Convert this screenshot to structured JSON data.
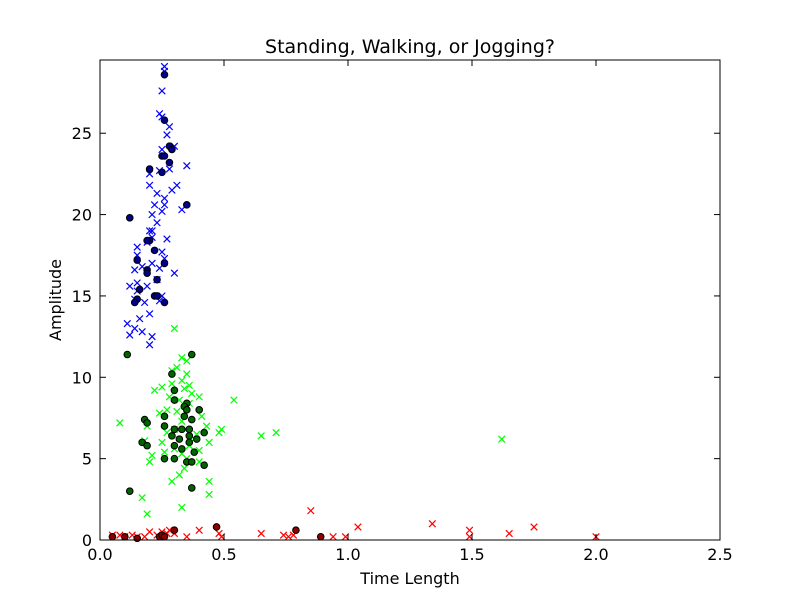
{
  "chart_data": {
    "type": "scatter",
    "title": "Standing, Walking, or Jogging?",
    "xlabel": "Time Length",
    "ylabel": "Amplitude",
    "xlim": [
      0,
      2.5
    ],
    "ylim": [
      0,
      29.5
    ],
    "xticks": [
      0.0,
      0.5,
      1.0,
      1.5,
      2.0,
      2.5
    ],
    "xtick_labels": [
      "0.0",
      "0.5",
      "1.0",
      "1.5",
      "2.0",
      "2.5"
    ],
    "yticks": [
      0,
      5,
      10,
      15,
      20,
      25
    ],
    "ytick_labels": [
      "0",
      "5",
      "10",
      "15",
      "20",
      "25"
    ],
    "grid": false,
    "legend": "none",
    "series": [
      {
        "marker": "x",
        "color": "#0000ff",
        "points": [
          [
            0.26,
            29.1
          ],
          [
            0.26,
            28.8
          ],
          [
            0.25,
            27.6
          ],
          [
            0.25,
            26.0
          ],
          [
            0.24,
            26.2
          ],
          [
            0.28,
            25.4
          ],
          [
            0.27,
            24.9
          ],
          [
            0.3,
            24.2
          ],
          [
            0.25,
            24.0
          ],
          [
            0.35,
            23.0
          ],
          [
            0.24,
            22.7
          ],
          [
            0.28,
            22.8
          ],
          [
            0.2,
            22.5
          ],
          [
            0.31,
            21.8
          ],
          [
            0.29,
            21.5
          ],
          [
            0.2,
            21.8
          ],
          [
            0.23,
            21.3
          ],
          [
            0.22,
            20.6
          ],
          [
            0.26,
            21.0
          ],
          [
            0.26,
            20.6
          ],
          [
            0.33,
            20.3
          ],
          [
            0.25,
            20.2
          ],
          [
            0.21,
            20.0
          ],
          [
            0.23,
            19.5
          ],
          [
            0.2,
            19.0
          ],
          [
            0.21,
            19.0
          ],
          [
            0.15,
            18.0
          ],
          [
            0.15,
            17.5
          ],
          [
            0.19,
            18.3
          ],
          [
            0.21,
            18.6
          ],
          [
            0.27,
            18.5
          ],
          [
            0.25,
            17.7
          ],
          [
            0.26,
            17.3
          ],
          [
            0.14,
            16.6
          ],
          [
            0.17,
            16.8
          ],
          [
            0.21,
            17.0
          ],
          [
            0.24,
            16.7
          ],
          [
            0.3,
            16.4
          ],
          [
            0.23,
            16.0
          ],
          [
            0.15,
            15.8
          ],
          [
            0.12,
            15.6
          ],
          [
            0.15,
            15.3
          ],
          [
            0.14,
            14.8
          ],
          [
            0.18,
            14.6
          ],
          [
            0.24,
            14.7
          ],
          [
            0.2,
            13.9
          ],
          [
            0.16,
            13.6
          ],
          [
            0.11,
            13.3
          ],
          [
            0.14,
            13.0
          ],
          [
            0.17,
            12.8
          ],
          [
            0.21,
            12.5
          ],
          [
            0.12,
            12.6
          ],
          [
            0.2,
            12.0
          ],
          [
            0.25,
            15.0
          ],
          [
            0.19,
            15.6
          ]
        ]
      },
      {
        "marker": "o",
        "color": "#00008b",
        "points": [
          [
            0.26,
            28.6
          ],
          [
            0.26,
            25.8
          ],
          [
            0.28,
            24.2
          ],
          [
            0.29,
            24.0
          ],
          [
            0.25,
            23.6
          ],
          [
            0.26,
            23.6
          ],
          [
            0.28,
            23.2
          ],
          [
            0.2,
            22.8
          ],
          [
            0.25,
            22.6
          ],
          [
            0.35,
            20.6
          ],
          [
            0.12,
            19.8
          ],
          [
            0.2,
            18.4
          ],
          [
            0.19,
            18.4
          ],
          [
            0.22,
            17.8
          ],
          [
            0.15,
            17.2
          ],
          [
            0.26,
            17.0
          ],
          [
            0.19,
            16.6
          ],
          [
            0.19,
            16.4
          ],
          [
            0.23,
            16.0
          ],
          [
            0.16,
            15.4
          ],
          [
            0.22,
            15.0
          ],
          [
            0.23,
            15.0
          ],
          [
            0.15,
            14.8
          ],
          [
            0.14,
            14.6
          ],
          [
            0.26,
            14.6
          ]
        ]
      },
      {
        "marker": "x",
        "color": "#00ff00",
        "points": [
          [
            0.3,
            13.0
          ],
          [
            0.33,
            11.2
          ],
          [
            0.35,
            11.0
          ],
          [
            0.31,
            10.6
          ],
          [
            0.29,
            10.4
          ],
          [
            0.35,
            10.2
          ],
          [
            0.33,
            9.8
          ],
          [
            0.29,
            9.6
          ],
          [
            0.25,
            9.4
          ],
          [
            0.22,
            9.2
          ],
          [
            0.34,
            9.3
          ],
          [
            0.37,
            9.0
          ],
          [
            0.28,
            8.8
          ],
          [
            0.32,
            8.6
          ],
          [
            0.4,
            8.8
          ],
          [
            0.54,
            8.6
          ],
          [
            0.36,
            8.4
          ],
          [
            0.27,
            8.0
          ],
          [
            0.24,
            7.8
          ],
          [
            0.41,
            7.6
          ],
          [
            0.33,
            7.3
          ],
          [
            0.08,
            7.2
          ],
          [
            0.19,
            7.0
          ],
          [
            0.43,
            7.0
          ],
          [
            0.3,
            6.8
          ],
          [
            0.49,
            6.8
          ],
          [
            0.27,
            6.6
          ],
          [
            0.48,
            6.6
          ],
          [
            0.39,
            6.5
          ],
          [
            0.65,
            6.4
          ],
          [
            0.71,
            6.6
          ],
          [
            1.62,
            6.2
          ],
          [
            0.18,
            6.1
          ],
          [
            0.25,
            6.0
          ],
          [
            0.44,
            6.0
          ],
          [
            0.36,
            5.8
          ],
          [
            0.3,
            5.6
          ],
          [
            0.4,
            5.5
          ],
          [
            0.33,
            5.3
          ],
          [
            0.35,
            5.0
          ],
          [
            0.2,
            4.8
          ],
          [
            0.4,
            4.8
          ],
          [
            0.34,
            4.4
          ],
          [
            0.32,
            4.0
          ],
          [
            0.29,
            3.6
          ],
          [
            0.44,
            3.6
          ],
          [
            0.17,
            2.6
          ],
          [
            0.33,
            2.0
          ],
          [
            0.19,
            1.6
          ],
          [
            0.44,
            2.8
          ],
          [
            0.21,
            5.2
          ],
          [
            0.26,
            5.4
          ],
          [
            0.38,
            6.2
          ],
          [
            0.31,
            7.9
          ],
          [
            0.36,
            9.5
          ]
        ]
      },
      {
        "marker": "o",
        "color": "#006400",
        "points": [
          [
            0.11,
            11.4
          ],
          [
            0.37,
            11.4
          ],
          [
            0.29,
            10.2
          ],
          [
            0.3,
            9.2
          ],
          [
            0.3,
            8.6
          ],
          [
            0.35,
            8.4
          ],
          [
            0.34,
            8.2
          ],
          [
            0.35,
            8.0
          ],
          [
            0.4,
            8.0
          ],
          [
            0.26,
            7.6
          ],
          [
            0.34,
            7.6
          ],
          [
            0.37,
            7.4
          ],
          [
            0.18,
            7.4
          ],
          [
            0.19,
            7.2
          ],
          [
            0.26,
            7.0
          ],
          [
            0.3,
            6.8
          ],
          [
            0.33,
            6.8
          ],
          [
            0.36,
            6.8
          ],
          [
            0.42,
            6.6
          ],
          [
            0.29,
            6.4
          ],
          [
            0.32,
            6.2
          ],
          [
            0.36,
            6.4
          ],
          [
            0.39,
            6.2
          ],
          [
            0.17,
            6.0
          ],
          [
            0.19,
            5.8
          ],
          [
            0.36,
            6.0
          ],
          [
            0.3,
            5.8
          ],
          [
            0.33,
            5.6
          ],
          [
            0.38,
            5.4
          ],
          [
            0.26,
            5.0
          ],
          [
            0.3,
            5.0
          ],
          [
            0.35,
            4.8
          ],
          [
            0.37,
            4.8
          ],
          [
            0.42,
            4.6
          ],
          [
            0.37,
            3.2
          ],
          [
            0.12,
            3.0
          ]
        ]
      },
      {
        "marker": "x",
        "color": "#ff0000",
        "points": [
          [
            0.05,
            0.3
          ],
          [
            0.08,
            0.3
          ],
          [
            0.1,
            0.2
          ],
          [
            0.13,
            0.3
          ],
          [
            0.15,
            0.2
          ],
          [
            0.2,
            0.5
          ],
          [
            0.23,
            0.3
          ],
          [
            0.25,
            0.5
          ],
          [
            0.27,
            0.4
          ],
          [
            0.3,
            0.4
          ],
          [
            0.35,
            0.2
          ],
          [
            0.4,
            0.6
          ],
          [
            0.48,
            0.4
          ],
          [
            0.49,
            0.2
          ],
          [
            0.65,
            0.4
          ],
          [
            0.74,
            0.3
          ],
          [
            0.76,
            0.2
          ],
          [
            0.78,
            0.3
          ],
          [
            0.85,
            1.8
          ],
          [
            0.94,
            0.2
          ],
          [
            0.99,
            0.2
          ],
          [
            1.04,
            0.8
          ],
          [
            1.34,
            1.0
          ],
          [
            1.49,
            0.6
          ],
          [
            1.49,
            0.2
          ],
          [
            1.65,
            0.4
          ],
          [
            1.75,
            0.8
          ],
          [
            2.0,
            0.2
          ],
          [
            0.18,
            0.2
          ],
          [
            0.28,
            0.6
          ]
        ]
      },
      {
        "marker": "o",
        "color": "#8b0000",
        "points": [
          [
            0.05,
            0.2
          ],
          [
            0.1,
            0.2
          ],
          [
            0.15,
            0.1
          ],
          [
            0.24,
            0.2
          ],
          [
            0.25,
            0.3
          ],
          [
            0.26,
            0.2
          ],
          [
            0.3,
            0.6
          ],
          [
            0.47,
            0.8
          ],
          [
            0.79,
            0.6
          ],
          [
            0.89,
            0.2
          ]
        ]
      }
    ]
  }
}
